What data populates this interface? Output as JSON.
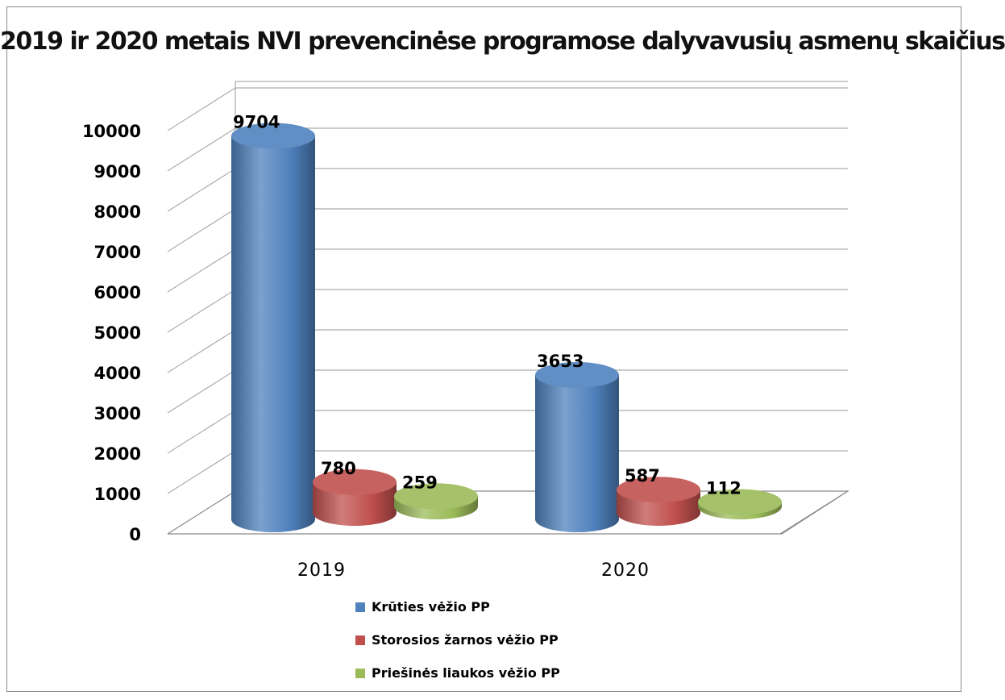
{
  "chart_data": {
    "type": "bar",
    "title": "2019 ir 2020 metais NVI prevencinėse programose dalyvavusių asmenų skaičius",
    "categories": [
      "2019",
      "2020"
    ],
    "series": [
      {
        "name": "Krūties vėžio PP",
        "values": [
          9704,
          3653
        ],
        "color": "#4f81bd"
      },
      {
        "name": "Storosios žarnos vėžio PP",
        "values": [
          780,
          587
        ],
        "color": "#c0504d"
      },
      {
        "name": "Priešinės liaukos vėžio PP",
        "values": [
          259,
          112
        ],
        "color": "#9bbb59"
      }
    ],
    "ylim": [
      0,
      10000
    ],
    "yticks": [
      "0",
      "1000",
      "2000",
      "3000",
      "4000",
      "5000",
      "6000",
      "7000",
      "8000",
      "9000",
      "10000"
    ],
    "data_labels": [
      [
        "9704",
        "3653"
      ],
      [
        "780",
        "587"
      ],
      [
        "259",
        "112"
      ]
    ],
    "grid": true,
    "legend_position": "bottom",
    "style": "3d-cylinder"
  }
}
